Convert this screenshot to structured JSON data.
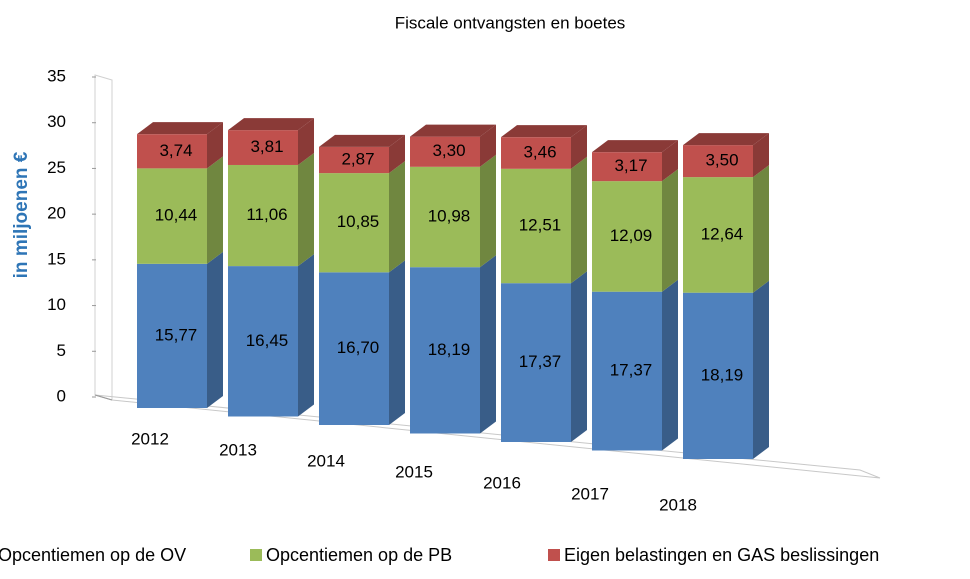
{
  "chart_data": {
    "type": "bar",
    "stacked": true,
    "title": "Fiscale ontvangsten en boetes",
    "ylabel": "in miljoenen €",
    "categories": [
      "2012",
      "2013",
      "2014",
      "2015",
      "2016",
      "2017",
      "2018"
    ],
    "series": [
      {
        "name": "Opcentiemen op de OV",
        "color": "#4f81bd",
        "values": [
          15.77,
          16.45,
          16.7,
          18.19,
          17.37,
          17.37,
          18.19
        ],
        "value_labels": [
          "15,77",
          "16,45",
          "16,70",
          "18,19",
          "17,37",
          "17,37",
          "18,19"
        ]
      },
      {
        "name": "Opcentiemen op de PB",
        "color": "#9bbb59",
        "values": [
          10.44,
          11.06,
          10.85,
          10.98,
          12.51,
          12.09,
          12.64
        ],
        "value_labels": [
          "10,44",
          "11,06",
          "10,85",
          "10,98",
          "12,51",
          "12,09",
          "12,64"
        ]
      },
      {
        "name": "Eigen belastingen en GAS beslissingen",
        "color": "#c0504d",
        "values": [
          3.74,
          3.81,
          2.87,
          3.3,
          3.46,
          3.17,
          3.5
        ],
        "value_labels": [
          "3,74",
          "3,81",
          "2,87",
          "3,30",
          "3,46",
          "3,17",
          "3,50"
        ]
      }
    ],
    "ylim": [
      0,
      35
    ],
    "yticks": [
      0,
      5,
      10,
      15,
      20,
      25,
      30,
      35
    ],
    "legend": "bottom"
  }
}
